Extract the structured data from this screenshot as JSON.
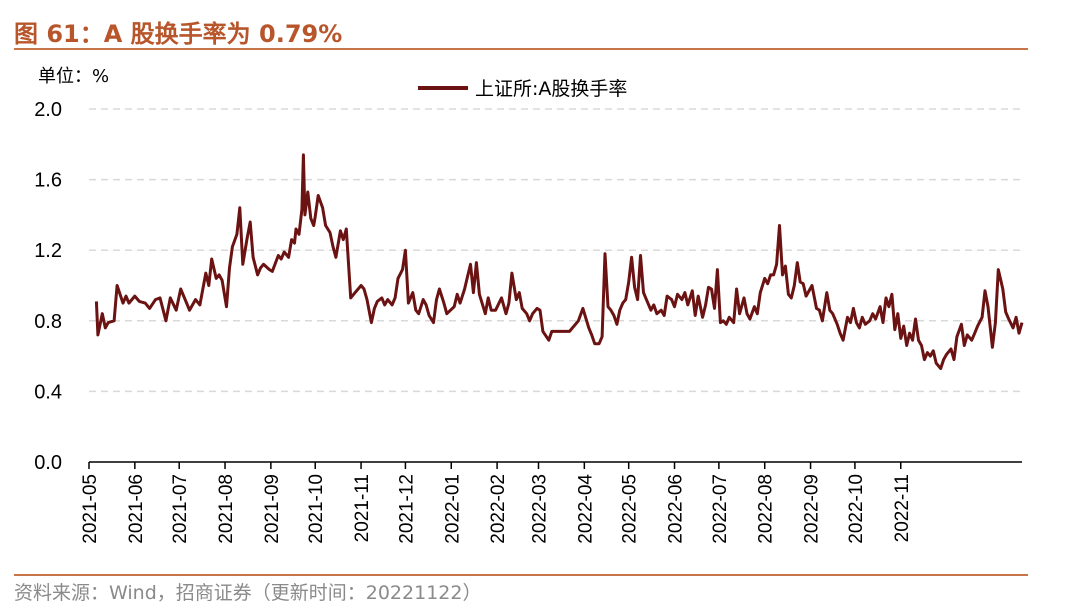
{
  "header": {
    "title": "图 61：A 股换手率为 0.79%"
  },
  "unit_label": "单位：%",
  "source": "资料来源：Wind，招商证券（更新时间：20221122）",
  "colors": {
    "series": "#6b1212",
    "title": "#b8562b",
    "grid": "#d9d9d9"
  },
  "chart_data": {
    "type": "line",
    "ylim": [
      0,
      2.0
    ],
    "yticks": [
      "0.0",
      "0.4",
      "0.8",
      "1.2",
      "1.6",
      "2.0"
    ],
    "xticks": [
      "2021-05",
      "2021-06",
      "2021-07",
      "2021-08",
      "2021-09",
      "2021-10",
      "2021-11",
      "2021-12",
      "2022-01",
      "2022-02",
      "2022-03",
      "2022-04",
      "2022-05",
      "2022-06",
      "2022-07",
      "2022-08",
      "2022-09",
      "2022-10",
      "2022-11"
    ],
    "grid": "horizontal dashed",
    "legend": "top-center",
    "series": [
      {
        "name": "上证所:A股换手率",
        "points": [
          [
            "2021-05-06",
            0.91
          ],
          [
            "2021-05-07",
            0.72
          ],
          [
            "2021-05-10",
            0.84
          ],
          [
            "2021-05-12",
            0.76
          ],
          [
            "2021-05-14",
            0.79
          ],
          [
            "2021-05-18",
            0.8
          ],
          [
            "2021-05-20",
            1.0
          ],
          [
            "2021-05-24",
            0.9
          ],
          [
            "2021-05-26",
            0.94
          ],
          [
            "2021-05-28",
            0.9
          ],
          [
            "2021-06-01",
            0.94
          ],
          [
            "2021-06-04",
            0.91
          ],
          [
            "2021-06-08",
            0.9
          ],
          [
            "2021-06-11",
            0.87
          ],
          [
            "2021-06-15",
            0.92
          ],
          [
            "2021-06-18",
            0.93
          ],
          [
            "2021-06-22",
            0.8
          ],
          [
            "2021-06-25",
            0.93
          ],
          [
            "2021-06-29",
            0.86
          ],
          [
            "2021-07-02",
            0.98
          ],
          [
            "2021-07-06",
            0.9
          ],
          [
            "2021-07-08",
            0.86
          ],
          [
            "2021-07-12",
            0.92
          ],
          [
            "2021-07-15",
            0.89
          ],
          [
            "2021-07-19",
            1.07
          ],
          [
            "2021-07-21",
            1.0
          ],
          [
            "2021-07-23",
            1.15
          ],
          [
            "2021-07-26",
            1.04
          ],
          [
            "2021-07-28",
            1.06
          ],
          [
            "2021-07-30",
            1.03
          ],
          [
            "2021-08-02",
            0.88
          ],
          [
            "2021-08-04",
            1.1
          ],
          [
            "2021-08-06",
            1.22
          ],
          [
            "2021-08-09",
            1.29
          ],
          [
            "2021-08-11",
            1.44
          ],
          [
            "2021-08-13",
            1.12
          ],
          [
            "2021-08-16",
            1.27
          ],
          [
            "2021-08-18",
            1.36
          ],
          [
            "2021-08-20",
            1.16
          ],
          [
            "2021-08-23",
            1.06
          ],
          [
            "2021-08-25",
            1.1
          ],
          [
            "2021-08-27",
            1.12
          ],
          [
            "2021-08-31",
            1.09
          ],
          [
            "2021-09-02",
            1.08
          ],
          [
            "2021-09-06",
            1.17
          ],
          [
            "2021-09-08",
            1.15
          ],
          [
            "2021-09-10",
            1.19
          ],
          [
            "2021-09-13",
            1.16
          ],
          [
            "2021-09-15",
            1.26
          ],
          [
            "2021-09-17",
            1.24
          ],
          [
            "2021-09-18",
            1.32
          ],
          [
            "2021-09-20",
            1.29
          ],
          [
            "2021-09-22",
            1.43
          ],
          [
            "2021-09-23",
            1.74
          ],
          [
            "2021-09-24",
            1.4
          ],
          [
            "2021-09-26",
            1.53
          ],
          [
            "2021-09-28",
            1.38
          ],
          [
            "2021-09-30",
            1.34
          ],
          [
            "2021-10-01",
            1.39
          ],
          [
            "2021-10-03",
            1.51
          ],
          [
            "2021-10-06",
            1.44
          ],
          [
            "2021-10-08",
            1.34
          ],
          [
            "2021-10-11",
            1.3
          ],
          [
            "2021-10-13",
            1.22
          ],
          [
            "2021-10-15",
            1.16
          ],
          [
            "2021-10-18",
            1.31
          ],
          [
            "2021-10-20",
            1.26
          ],
          [
            "2021-10-22",
            1.32
          ],
          [
            "2021-10-25",
            0.93
          ],
          [
            "2021-10-28",
            0.96
          ],
          [
            "2021-11-01",
            1.0
          ],
          [
            "2021-11-03",
            0.98
          ],
          [
            "2021-11-05",
            0.92
          ],
          [
            "2021-11-08",
            0.79
          ],
          [
            "2021-11-10",
            0.87
          ],
          [
            "2021-11-12",
            0.91
          ],
          [
            "2021-11-15",
            0.93
          ],
          [
            "2021-11-17",
            0.89
          ],
          [
            "2021-11-19",
            0.92
          ],
          [
            "2021-11-22",
            0.89
          ],
          [
            "2021-11-24",
            0.93
          ],
          [
            "2021-11-26",
            1.04
          ],
          [
            "2021-11-29",
            1.09
          ],
          [
            "2021-12-01",
            1.2
          ],
          [
            "2021-12-03",
            0.9
          ],
          [
            "2021-12-06",
            0.96
          ],
          [
            "2021-12-08",
            0.86
          ],
          [
            "2021-12-10",
            0.84
          ],
          [
            "2021-12-13",
            0.92
          ],
          [
            "2021-12-15",
            0.89
          ],
          [
            "2021-12-17",
            0.83
          ],
          [
            "2021-12-20",
            0.79
          ],
          [
            "2021-12-22",
            0.92
          ],
          [
            "2021-12-24",
            0.98
          ],
          [
            "2021-12-27",
            0.9
          ],
          [
            "2021-12-29",
            0.84
          ],
          [
            "2022-01-03",
            0.88
          ],
          [
            "2022-01-05",
            0.95
          ],
          [
            "2022-01-07",
            0.9
          ],
          [
            "2022-01-10",
            0.98
          ],
          [
            "2022-01-12",
            1.05
          ],
          [
            "2022-01-14",
            1.12
          ],
          [
            "2022-01-16",
            0.96
          ],
          [
            "2022-01-18",
            1.13
          ],
          [
            "2022-01-20",
            0.95
          ],
          [
            "2022-01-24",
            0.84
          ],
          [
            "2022-01-26",
            0.93
          ],
          [
            "2022-01-28",
            0.86
          ],
          [
            "2022-01-31",
            0.86
          ],
          [
            "2022-02-04",
            0.93
          ],
          [
            "2022-02-07",
            0.84
          ],
          [
            "2022-02-09",
            0.9
          ],
          [
            "2022-02-11",
            1.07
          ],
          [
            "2022-02-14",
            0.92
          ],
          [
            "2022-02-16",
            0.96
          ],
          [
            "2022-02-18",
            0.87
          ],
          [
            "2022-02-21",
            0.84
          ],
          [
            "2022-02-23",
            0.8
          ],
          [
            "2022-02-25",
            0.84
          ],
          [
            "2022-02-28",
            0.87
          ],
          [
            "2022-03-02",
            0.86
          ],
          [
            "2022-03-04",
            0.74
          ],
          [
            "2022-03-08",
            0.69
          ],
          [
            "2022-03-10",
            0.74
          ],
          [
            "2022-03-14",
            0.74
          ],
          [
            "2022-03-17",
            0.74
          ],
          [
            "2022-03-22",
            0.74
          ],
          [
            "2022-03-28",
            0.8
          ],
          [
            "2022-03-31",
            0.87
          ],
          [
            "2022-04-04",
            0.76
          ],
          [
            "2022-04-06",
            0.72
          ],
          [
            "2022-04-08",
            0.67
          ],
          [
            "2022-04-11",
            0.67
          ],
          [
            "2022-04-13",
            0.71
          ],
          [
            "2022-04-15",
            1.18
          ],
          [
            "2022-04-17",
            0.88
          ],
          [
            "2022-04-19",
            0.86
          ],
          [
            "2022-04-21",
            0.83
          ],
          [
            "2022-04-23",
            0.78
          ],
          [
            "2022-04-25",
            0.86
          ],
          [
            "2022-04-27",
            0.9
          ],
          [
            "2022-04-29",
            0.92
          ],
          [
            "2022-05-01",
            1.02
          ],
          [
            "2022-05-03",
            1.16
          ],
          [
            "2022-05-05",
            0.99
          ],
          [
            "2022-05-07",
            0.92
          ],
          [
            "2022-05-09",
            1.17
          ],
          [
            "2022-05-11",
            0.96
          ],
          [
            "2022-05-13",
            0.92
          ],
          [
            "2022-05-16",
            0.86
          ],
          [
            "2022-05-18",
            0.89
          ],
          [
            "2022-05-20",
            0.84
          ],
          [
            "2022-05-23",
            0.86
          ],
          [
            "2022-05-25",
            0.83
          ],
          [
            "2022-05-27",
            0.94
          ],
          [
            "2022-05-30",
            0.92
          ],
          [
            "2022-06-01",
            0.88
          ],
          [
            "2022-06-03",
            0.95
          ],
          [
            "2022-06-06",
            0.92
          ],
          [
            "2022-06-08",
            0.96
          ],
          [
            "2022-06-10",
            0.89
          ],
          [
            "2022-06-13",
            0.97
          ],
          [
            "2022-06-15",
            0.83
          ],
          [
            "2022-06-17",
            0.94
          ],
          [
            "2022-06-20",
            0.82
          ],
          [
            "2022-06-22",
            0.89
          ],
          [
            "2022-06-24",
            0.99
          ],
          [
            "2022-06-26",
            0.98
          ],
          [
            "2022-06-28",
            0.87
          ],
          [
            "2022-06-30",
            1.09
          ],
          [
            "2022-07-02",
            0.79
          ],
          [
            "2022-07-04",
            0.8
          ],
          [
            "2022-07-06",
            0.78
          ],
          [
            "2022-07-08",
            0.82
          ],
          [
            "2022-07-11",
            0.79
          ],
          [
            "2022-07-13",
            0.98
          ],
          [
            "2022-07-15",
            0.84
          ],
          [
            "2022-07-18",
            0.93
          ],
          [
            "2022-07-20",
            0.84
          ],
          [
            "2022-07-22",
            0.81
          ],
          [
            "2022-07-25",
            0.88
          ],
          [
            "2022-07-27",
            0.84
          ],
          [
            "2022-07-29",
            0.96
          ],
          [
            "2022-08-01",
            1.04
          ],
          [
            "2022-08-03",
            1.01
          ],
          [
            "2022-08-05",
            1.06
          ],
          [
            "2022-08-07",
            1.06
          ],
          [
            "2022-08-09",
            1.12
          ],
          [
            "2022-08-11",
            1.34
          ],
          [
            "2022-08-13",
            1.06
          ],
          [
            "2022-08-15",
            1.11
          ],
          [
            "2022-08-17",
            0.95
          ],
          [
            "2022-08-19",
            0.93
          ],
          [
            "2022-08-21",
            1.0
          ],
          [
            "2022-08-23",
            1.13
          ],
          [
            "2022-08-25",
            1.02
          ],
          [
            "2022-08-27",
            1.01
          ],
          [
            "2022-08-29",
            0.94
          ],
          [
            "2022-09-02",
            1.0
          ],
          [
            "2022-09-05",
            0.87
          ],
          [
            "2022-09-07",
            0.86
          ],
          [
            "2022-09-09",
            0.8
          ],
          [
            "2022-09-12",
            0.96
          ],
          [
            "2022-09-14",
            0.86
          ],
          [
            "2022-09-16",
            0.84
          ],
          [
            "2022-09-19",
            0.78
          ],
          [
            "2022-09-21",
            0.73
          ],
          [
            "2022-09-23",
            0.69
          ],
          [
            "2022-09-26",
            0.82
          ],
          [
            "2022-09-28",
            0.79
          ],
          [
            "2022-09-30",
            0.87
          ],
          [
            "2022-10-02",
            0.79
          ],
          [
            "2022-10-04",
            0.76
          ],
          [
            "2022-10-06",
            0.82
          ],
          [
            "2022-10-08",
            0.78
          ],
          [
            "2022-10-11",
            0.8
          ],
          [
            "2022-10-13",
            0.84
          ],
          [
            "2022-10-15",
            0.81
          ],
          [
            "2022-10-18",
            0.88
          ],
          [
            "2022-10-20",
            0.79
          ],
          [
            "2022-10-22",
            0.93
          ],
          [
            "2022-10-24",
            0.88
          ],
          [
            "2022-10-26",
            0.95
          ],
          [
            "2022-10-28",
            0.75
          ],
          [
            "2022-10-30",
            0.84
          ],
          [
            "2022-11-01",
            0.7
          ],
          [
            "2022-11-03",
            0.77
          ],
          [
            "2022-11-05",
            0.66
          ],
          [
            "2022-11-07",
            0.73
          ],
          [
            "2022-11-09",
            0.69
          ],
          [
            "2022-11-11",
            0.81
          ],
          [
            "2022-11-13",
            0.69
          ],
          [
            "2022-11-15",
            0.66
          ],
          [
            "2022-11-17",
            0.58
          ],
          [
            "2022-11-19",
            0.62
          ],
          [
            "2022-11-21",
            0.6
          ],
          [
            "2022-11-23",
            0.63
          ],
          [
            "2022-11-25",
            0.56
          ],
          [
            "2022-11-28",
            0.53
          ],
          [
            "2022-11-30",
            0.58
          ],
          [
            "2022-12-02",
            0.61
          ],
          [
            "2022-12-05",
            0.64
          ],
          [
            "2022-12-07",
            0.58
          ],
          [
            "2022-12-09",
            0.71
          ],
          [
            "2022-12-12",
            0.78
          ],
          [
            "2022-12-14",
            0.66
          ],
          [
            "2022-12-16",
            0.72
          ],
          [
            "2022-12-19",
            0.69
          ],
          [
            "2022-12-21",
            0.73
          ],
          [
            "2022-12-23",
            0.77
          ],
          [
            "2022-12-26",
            0.82
          ],
          [
            "2022-12-28",
            0.97
          ],
          [
            "2022-12-30",
            0.88
          ],
          [
            "2023-01-02",
            0.65
          ],
          [
            "2023-01-04",
            0.79
          ],
          [
            "2023-01-06",
            1.09
          ],
          [
            "2023-01-09",
            0.98
          ],
          [
            "2023-01-11",
            0.85
          ],
          [
            "2023-01-13",
            0.81
          ],
          [
            "2023-01-16",
            0.76
          ],
          [
            "2023-01-18",
            0.82
          ],
          [
            "2023-01-20",
            0.73
          ],
          [
            "2023-01-22",
            0.79
          ]
        ]
      }
    ]
  }
}
